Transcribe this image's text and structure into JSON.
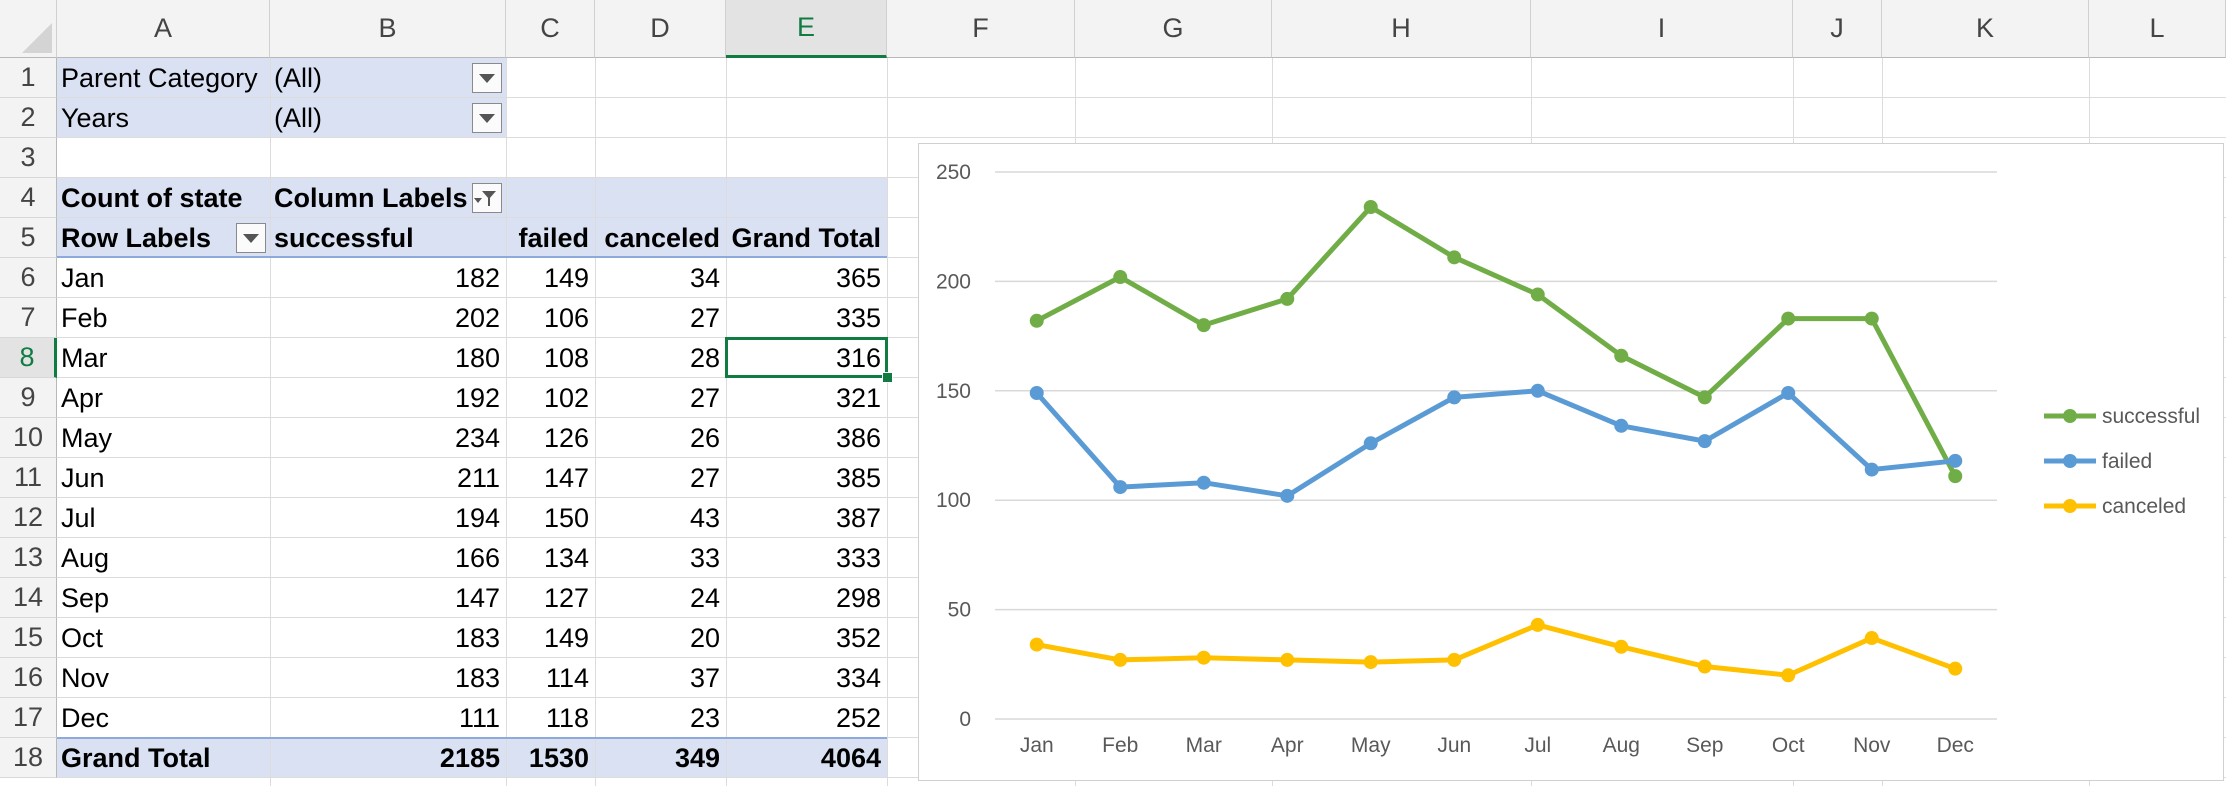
{
  "columns": [
    "A",
    "B",
    "C",
    "D",
    "E",
    "F",
    "G",
    "H",
    "I",
    "J",
    "K",
    "L"
  ],
  "rows": [
    "1",
    "2",
    "3",
    "4",
    "5",
    "6",
    "7",
    "8",
    "9",
    "10",
    "11",
    "12",
    "13",
    "14",
    "15",
    "16",
    "17",
    "18"
  ],
  "selected_cell": {
    "column": "E",
    "row": "8"
  },
  "pivot": {
    "filters": [
      {
        "label": "Parent Category",
        "value": "(All)"
      },
      {
        "label": "Years",
        "value": "(All)"
      }
    ],
    "count_label": "Count of state",
    "column_labels": "Column Labels",
    "row_labels": "Row Labels",
    "headers": [
      "successful",
      "failed",
      "canceled",
      "Grand Total"
    ],
    "rows": [
      {
        "label": "Jan",
        "values": [
          "182",
          "149",
          "34",
          "365"
        ]
      },
      {
        "label": "Feb",
        "values": [
          "202",
          "106",
          "27",
          "335"
        ]
      },
      {
        "label": "Mar",
        "values": [
          "180",
          "108",
          "28",
          "316"
        ]
      },
      {
        "label": "Apr",
        "values": [
          "192",
          "102",
          "27",
          "321"
        ]
      },
      {
        "label": "May",
        "values": [
          "234",
          "126",
          "26",
          "386"
        ]
      },
      {
        "label": "Jun",
        "values": [
          "211",
          "147",
          "27",
          "385"
        ]
      },
      {
        "label": "Jul",
        "values": [
          "194",
          "150",
          "43",
          "387"
        ]
      },
      {
        "label": "Aug",
        "values": [
          "166",
          "134",
          "33",
          "333"
        ]
      },
      {
        "label": "Sep",
        "values": [
          "147",
          "127",
          "24",
          "298"
        ]
      },
      {
        "label": "Oct",
        "values": [
          "183",
          "149",
          "20",
          "352"
        ]
      },
      {
        "label": "Nov",
        "values": [
          "183",
          "114",
          "37",
          "334"
        ]
      },
      {
        "label": "Dec",
        "values": [
          "111",
          "118",
          "23",
          "252"
        ]
      }
    ],
    "grand_total": {
      "label": "Grand Total",
      "values": [
        "2185",
        "1530",
        "349",
        "4064"
      ]
    }
  },
  "chart_data": {
    "type": "line",
    "categories": [
      "Jan",
      "Feb",
      "Mar",
      "Apr",
      "May",
      "Jun",
      "Jul",
      "Aug",
      "Sep",
      "Oct",
      "Nov",
      "Dec"
    ],
    "series": [
      {
        "name": "successful",
        "color": "#70ad47",
        "values": [
          182,
          202,
          180,
          192,
          234,
          211,
          194,
          166,
          147,
          183,
          183,
          111
        ]
      },
      {
        "name": "failed",
        "color": "#5b9bd5",
        "values": [
          149,
          106,
          108,
          102,
          126,
          147,
          150,
          134,
          127,
          149,
          114,
          118
        ]
      },
      {
        "name": "canceled",
        "color": "#ffc000",
        "values": [
          34,
          27,
          28,
          27,
          26,
          27,
          43,
          33,
          24,
          20,
          37,
          23
        ]
      }
    ],
    "ylim": [
      0,
      250
    ],
    "yticks": [
      "0",
      "50",
      "100",
      "150",
      "200",
      "250"
    ],
    "grid": true,
    "legend_position": "right"
  },
  "colors": {
    "accent": "#107c41",
    "pivot_fill": "#d9e1f2",
    "pivot_line": "#8ea9db"
  }
}
